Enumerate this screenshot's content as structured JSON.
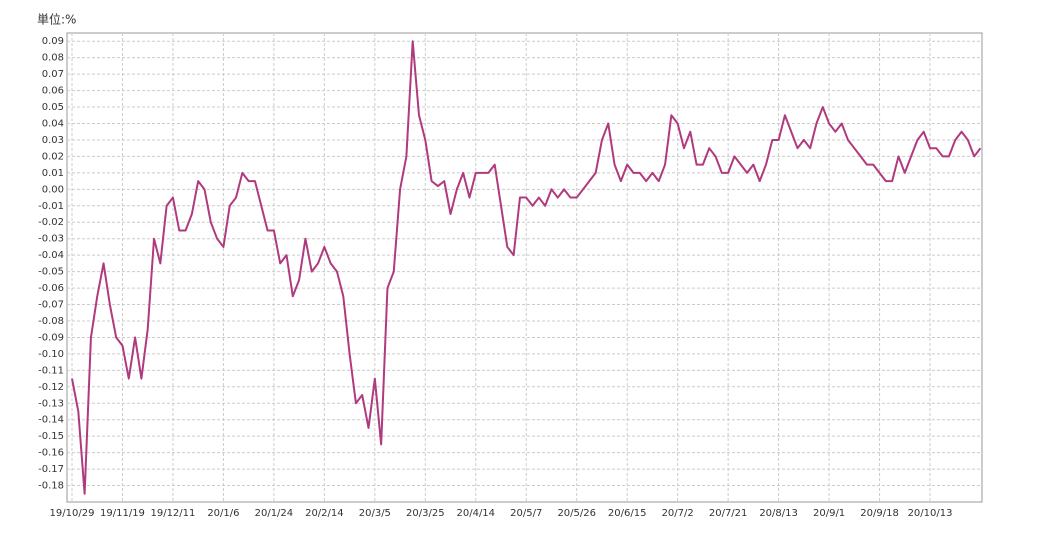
{
  "chart_data": {
    "type": "line",
    "unit_label": "単位:%",
    "categories": [
      "19/10/29",
      null,
      null,
      null,
      null,
      null,
      null,
      null,
      "19/11/19",
      null,
      null,
      null,
      null,
      null,
      null,
      null,
      "19/12/11",
      null,
      null,
      null,
      null,
      null,
      null,
      null,
      "20/1/6",
      null,
      null,
      null,
      null,
      null,
      null,
      null,
      "20/1/24",
      null,
      null,
      null,
      null,
      null,
      null,
      null,
      "20/2/14",
      null,
      null,
      null,
      null,
      null,
      null,
      null,
      "20/3/5",
      null,
      null,
      null,
      null,
      null,
      null,
      null,
      "20/3/25",
      null,
      null,
      null,
      null,
      null,
      null,
      null,
      "20/4/14",
      null,
      null,
      null,
      null,
      null,
      null,
      null,
      "20/5/7",
      null,
      null,
      null,
      null,
      null,
      null,
      null,
      "20/5/26",
      null,
      null,
      null,
      null,
      null,
      null,
      null,
      "20/6/15",
      null,
      null,
      null,
      null,
      null,
      null,
      null,
      "20/7/2",
      null,
      null,
      null,
      null,
      null,
      null,
      null,
      "20/7/21",
      null,
      null,
      null,
      null,
      null,
      null,
      null,
      "20/8/13",
      null,
      null,
      null,
      null,
      null,
      null,
      null,
      "20/9/1",
      null,
      null,
      null,
      null,
      null,
      null,
      null,
      "20/9/18",
      null,
      null,
      null,
      null,
      null,
      null,
      null,
      "20/10/13",
      null,
      null,
      null,
      null,
      null,
      null,
      null,
      null
    ],
    "values": [
      -0.115,
      -0.135,
      -0.185,
      -0.09,
      -0.065,
      -0.045,
      -0.07,
      -0.09,
      -0.095,
      -0.115,
      -0.09,
      -0.115,
      -0.085,
      -0.03,
      -0.045,
      -0.01,
      -0.005,
      -0.025,
      -0.025,
      -0.015,
      0.005,
      0,
      -0.02,
      -0.03,
      -0.035,
      -0.01,
      -0.005,
      0.01,
      0.005,
      0.005,
      -0.01,
      -0.025,
      -0.025,
      -0.045,
      -0.04,
      -0.065,
      -0.055,
      -0.03,
      -0.05,
      -0.045,
      -0.035,
      -0.045,
      -0.05,
      -0.065,
      -0.1,
      -0.13,
      -0.125,
      -0.145,
      -0.115,
      -0.155,
      -0.06,
      -0.05,
      0,
      0.02,
      0.09,
      0.045,
      0.03,
      0.005,
      0.002,
      0.005,
      -0.015,
      0,
      0.01,
      -0.005,
      0.01,
      0.01,
      0.01,
      0.015,
      -0.01,
      -0.035,
      -0.04,
      -0.005,
      -0.005,
      -0.01,
      -0.005,
      -0.01,
      0,
      -0.005,
      0,
      -0.005,
      -0.005,
      0,
      0.005,
      0.01,
      0.03,
      0.04,
      0.015,
      0.005,
      0.015,
      0.01,
      0.01,
      0.005,
      0.01,
      0.005,
      0.015,
      0.045,
      0.04,
      0.025,
      0.035,
      0.015,
      0.015,
      0.025,
      0.02,
      0.01,
      0.01,
      0.02,
      0.015,
      0.01,
      0.015,
      0.005,
      0.015,
      0.03,
      0.03,
      0.045,
      0.035,
      0.025,
      0.03,
      0.025,
      0.04,
      0.05,
      0.04,
      0.035,
      0.04,
      0.03,
      0.025,
      0.02,
      0.015,
      0.015,
      0.01,
      0.005,
      0.005,
      0.02,
      0.01,
      0.02,
      0.03,
      0.035,
      0.025,
      0.025,
      0.02,
      0.02,
      0.03,
      0.035,
      0.03,
      0.02,
      0.025
    ],
    "color": "#b03a7e",
    "ylim": [
      -0.19,
      0.095
    ],
    "yticks": [
      0.09,
      0.08,
      0.07,
      0.06,
      0.05,
      0.04,
      0.03,
      0.02,
      0.01,
      {
        "value": 0,
        "label": "0.00"
      },
      -0.01,
      -0.02,
      -0.03,
      -0.04,
      -0.05,
      -0.06,
      -0.07,
      -0.08,
      -0.09,
      {
        "value": -0.1,
        "label": "-0.10"
      },
      -0.11,
      -0.12,
      -0.13,
      -0.14,
      -0.15,
      -0.16,
      -0.17,
      -0.18
    ],
    "grid": true
  }
}
